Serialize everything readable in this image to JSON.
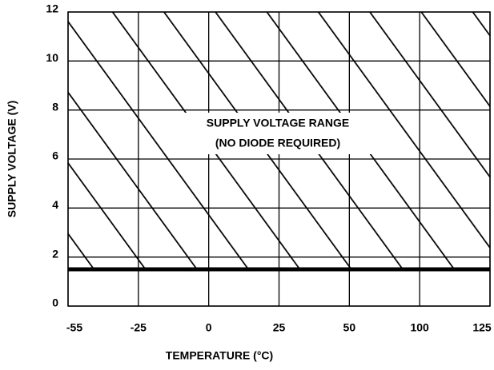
{
  "chart_data": {
    "type": "line",
    "x_label": "TEMPERATURE (°C)",
    "y_label": "SUPPLY VOLTAGE (V)",
    "annotations": [
      "SUPPLY VOLTAGE RANGE",
      "(NO DIODE REQUIRED)"
    ],
    "categories": [
      "-55",
      "-25",
      "0",
      "25",
      "50",
      "100",
      "125"
    ],
    "values": [
      1.5,
      1.5,
      1.5,
      1.5,
      1.5,
      1.5,
      1.5
    ],
    "color": "#000000",
    "hatched_region": true,
    "ylim": [
      0,
      12
    ],
    "yticks": [
      0,
      2,
      4,
      6,
      8,
      10,
      12
    ],
    "grid": true
  }
}
